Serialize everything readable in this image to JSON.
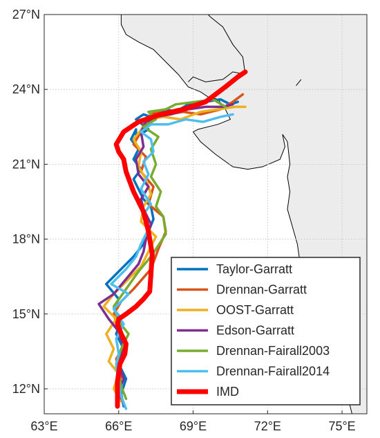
{
  "chart_data": {
    "type": "line",
    "title": "",
    "xlabel": "",
    "ylabel": "",
    "xlim": [
      63,
      76
    ],
    "ylim": [
      11,
      27
    ],
    "grid": true,
    "legend_position": "bottom-right",
    "x_ticks": [
      {
        "value": 63,
        "label": "63°E"
      },
      {
        "value": 66,
        "label": "66°E"
      },
      {
        "value": 69,
        "label": "69°E"
      },
      {
        "value": 72,
        "label": "72°E"
      },
      {
        "value": 75,
        "label": "75°E"
      }
    ],
    "y_ticks": [
      {
        "value": 12,
        "label": "12°N"
      },
      {
        "value": 15,
        "label": "15°N"
      },
      {
        "value": 18,
        "label": "18°N"
      },
      {
        "value": 21,
        "label": "21°N"
      },
      {
        "value": 24,
        "label": "24°N"
      },
      {
        "value": 27,
        "label": "27°N"
      }
    ],
    "map": {
      "land_color": "#ececec",
      "water_color": "#ffffff",
      "coast_color": "#000000",
      "land": [
        [
          66.1,
          26.6
        ],
        [
          66.3,
          26.2
        ],
        [
          66.8,
          25.9
        ],
        [
          67.4,
          25.6
        ],
        [
          68.0,
          25.0
        ],
        [
          68.4,
          24.6
        ],
        [
          68.8,
          24.1
        ],
        [
          69.3,
          23.9
        ],
        [
          69.6,
          23.7
        ],
        [
          70.0,
          23.6
        ],
        [
          70.3,
          23.2
        ],
        [
          70.5,
          22.8
        ],
        [
          70.0,
          22.6
        ],
        [
          69.2,
          22.4
        ],
        [
          69.0,
          22.3
        ],
        [
          69.3,
          21.9
        ],
        [
          69.9,
          21.4
        ],
        [
          70.6,
          20.9
        ],
        [
          71.2,
          20.8
        ],
        [
          71.8,
          20.9
        ],
        [
          72.5,
          21.2
        ],
        [
          72.7,
          21.7
        ],
        [
          72.6,
          22.2
        ],
        [
          72.8,
          21.9
        ],
        [
          72.9,
          21.0
        ],
        [
          72.8,
          20.5
        ],
        [
          72.9,
          19.9
        ],
        [
          72.8,
          19.2
        ],
        [
          73.0,
          18.5
        ],
        [
          73.2,
          17.8
        ],
        [
          73.3,
          17.1
        ],
        [
          73.6,
          16.3
        ],
        [
          73.8,
          15.6
        ],
        [
          74.1,
          14.9
        ],
        [
          74.5,
          14.0
        ],
        [
          74.7,
          13.2
        ],
        [
          74.9,
          12.5
        ],
        [
          75.1,
          12.0
        ],
        [
          75.3,
          11.4
        ],
        [
          75.4,
          11.0
        ],
        [
          76.0,
          11.0
        ],
        [
          76.0,
          27.0
        ],
        [
          66.1,
          27.0
        ]
      ],
      "border": [
        [
          68.8,
          24.3
        ],
        [
          69.0,
          24.5
        ],
        [
          69.5,
          24.3
        ],
        [
          70.2,
          24.4
        ],
        [
          70.6,
          24.7
        ],
        [
          71.1,
          24.6
        ],
        [
          71.0,
          25.3
        ],
        [
          70.6,
          25.8
        ],
        [
          70.2,
          26.5
        ],
        [
          69.7,
          26.9
        ],
        [
          69.6,
          27.0
        ]
      ],
      "island": [
        [
          73.15,
          24.15
        ],
        [
          73.35,
          24.4
        ]
      ]
    },
    "series": [
      {
        "name": "Taylor-Garratt",
        "color": "#0072BD",
        "width": 3.5,
        "x": [
          66.2,
          66.1,
          66.3,
          66.0,
          66.2,
          65.9,
          66.1,
          65.8,
          66.0,
          65.5,
          65.9,
          66.2,
          66.6,
          67.0,
          67.2,
          67.4,
          67.3,
          67.0,
          66.8,
          66.6,
          66.9,
          66.6,
          66.8,
          66.5,
          66.7,
          66.7,
          67.2,
          66.7,
          67.0,
          67.3,
          67.1,
          67.4,
          67.6,
          67.9,
          68.3,
          68.8,
          69.5,
          70.1,
          70.5,
          70.8
        ],
        "y": [
          11.3,
          11.8,
          12.4,
          13.0,
          13.6,
          14.2,
          14.8,
          15.2,
          15.6,
          16.2,
          16.6,
          16.9,
          17.3,
          17.8,
          18.3,
          18.8,
          19.3,
          19.6,
          20.0,
          20.4,
          20.8,
          21.2,
          21.6,
          22.0,
          22.4,
          22.1,
          22.4,
          22.8,
          23.0,
          22.9,
          22.6,
          22.9,
          23.0,
          23.2,
          23.1,
          23.4,
          23.5,
          23.6,
          23.4,
          23.5
        ]
      },
      {
        "name": "Drennan-Garratt",
        "color": "#D95319",
        "width": 3.5,
        "x": [
          66.2,
          66.0,
          66.1,
          65.9,
          66.2,
          66.0,
          65.8,
          66.1,
          66.6,
          67.3,
          67.6,
          67.9,
          67.8,
          67.2,
          67.4,
          66.9,
          67.1,
          66.6,
          66.9,
          67.1,
          67.3,
          67.6,
          68.0,
          68.6,
          69.3,
          70.1,
          70.6,
          71.0
        ],
        "y": [
          11.4,
          12.0,
          12.5,
          13.2,
          13.7,
          14.3,
          15.0,
          15.5,
          16.0,
          16.8,
          17.6,
          18.3,
          18.9,
          19.4,
          20.1,
          20.7,
          21.3,
          21.8,
          22.3,
          22.8,
          23.0,
          23.1,
          23.0,
          23.1,
          23.0,
          23.2,
          23.5,
          23.8
        ]
      },
      {
        "name": "OOST-Garratt",
        "color": "#EDB120",
        "width": 3.5,
        "x": [
          66.1,
          65.8,
          66.0,
          65.6,
          65.8,
          65.5,
          65.9,
          65.4,
          65.8,
          66.3,
          66.9,
          67.2,
          67.5,
          66.9,
          67.0,
          67.3,
          67.1,
          66.8,
          66.9,
          66.6,
          67.0,
          67.2,
          67.8,
          68.5,
          69.3,
          70.0,
          70.7,
          71.1
        ],
        "y": [
          11.5,
          12.0,
          12.6,
          13.1,
          13.6,
          14.2,
          14.8,
          15.3,
          15.8,
          16.3,
          16.9,
          17.5,
          18.1,
          18.7,
          19.3,
          19.8,
          20.4,
          20.9,
          21.5,
          22.0,
          22.5,
          22.8,
          22.9,
          22.8,
          23.1,
          23.2,
          23.3,
          23.3
        ]
      },
      {
        "name": "Edson-Garratt",
        "color": "#7E2F8E",
        "width": 3.5,
        "x": [
          66.2,
          66.0,
          66.2,
          66.0,
          66.2,
          66.0,
          65.6,
          65.2,
          65.8,
          66.3,
          66.8,
          67.0,
          67.1,
          67.3,
          67.0,
          66.9,
          67.2,
          66.8,
          66.7,
          67.0,
          66.9,
          67.1,
          67.5,
          68.1,
          68.8,
          69.5,
          70.2,
          70.6
        ],
        "y": [
          11.4,
          11.9,
          12.4,
          13.0,
          13.7,
          14.3,
          14.8,
          15.4,
          15.8,
          16.4,
          17.0,
          17.5,
          18.0,
          18.6,
          19.2,
          19.6,
          20.1,
          20.6,
          21.2,
          21.7,
          22.3,
          22.7,
          22.9,
          23.0,
          23.2,
          23.3,
          23.3,
          23.4
        ]
      },
      {
        "name": "Drennan-Fairall2003",
        "color": "#77AC30",
        "width": 3.5,
        "x": [
          66.3,
          66.1,
          66.0,
          65.9,
          66.1,
          66.4,
          66.0,
          65.8,
          66.3,
          66.8,
          67.3,
          67.9,
          67.8,
          67.5,
          67.7,
          67.3,
          67.5,
          67.3,
          67.6,
          67.0,
          67.5,
          67.2,
          67.9,
          68.3,
          69.1,
          69.8,
          70.3
        ],
        "y": [
          11.6,
          12.1,
          12.6,
          13.0,
          13.6,
          14.2,
          14.7,
          15.3,
          16.0,
          16.7,
          17.3,
          18.2,
          18.9,
          19.3,
          19.9,
          20.5,
          21.0,
          21.6,
          22.1,
          22.5,
          22.8,
          23.1,
          23.2,
          23.4,
          23.5,
          23.6,
          23.3
        ]
      },
      {
        "name": "Drennan-Fairall2014",
        "color": "#4DBEEE",
        "width": 3.5,
        "x": [
          66.3,
          66.1,
          66.0,
          65.9,
          66.0,
          65.9,
          66.2,
          65.8,
          66.4,
          65.7,
          66.3,
          66.7,
          66.9,
          67.2,
          67.0,
          67.3,
          66.9,
          67.2,
          67.0,
          67.4,
          67.3,
          66.9,
          67.3,
          68.0,
          68.7,
          69.4,
          70.1,
          70.6
        ],
        "y": [
          11.2,
          11.7,
          12.3,
          12.9,
          13.4,
          14.0,
          14.6,
          15.2,
          15.8,
          16.2,
          16.8,
          17.3,
          17.8,
          18.4,
          19.0,
          19.4,
          20.0,
          20.6,
          21.1,
          21.5,
          22.0,
          22.3,
          22.6,
          22.6,
          22.8,
          22.7,
          22.9,
          23.0
        ]
      },
      {
        "name": "IMD",
        "color": "#FF0000",
        "width": 7,
        "x": [
          65.95,
          65.95,
          66.05,
          66.25,
          66.3,
          66.1,
          65.95,
          66.0,
          66.3,
          66.7,
          67.0,
          67.25,
          67.3,
          67.35,
          67.2,
          67.0,
          66.6,
          66.3,
          66.2,
          66.0,
          65.9,
          66.2,
          66.8,
          67.7,
          68.6,
          69.5,
          70.3,
          70.8,
          71.1
        ],
        "y": [
          11.3,
          12.3,
          13.0,
          13.4,
          13.8,
          14.2,
          14.6,
          14.8,
          15.0,
          15.3,
          15.6,
          15.9,
          16.6,
          17.4,
          18.3,
          19.1,
          19.9,
          20.7,
          21.2,
          21.5,
          21.8,
          22.3,
          22.7,
          23.0,
          23.2,
          23.5,
          24.1,
          24.5,
          24.7
        ]
      }
    ]
  }
}
